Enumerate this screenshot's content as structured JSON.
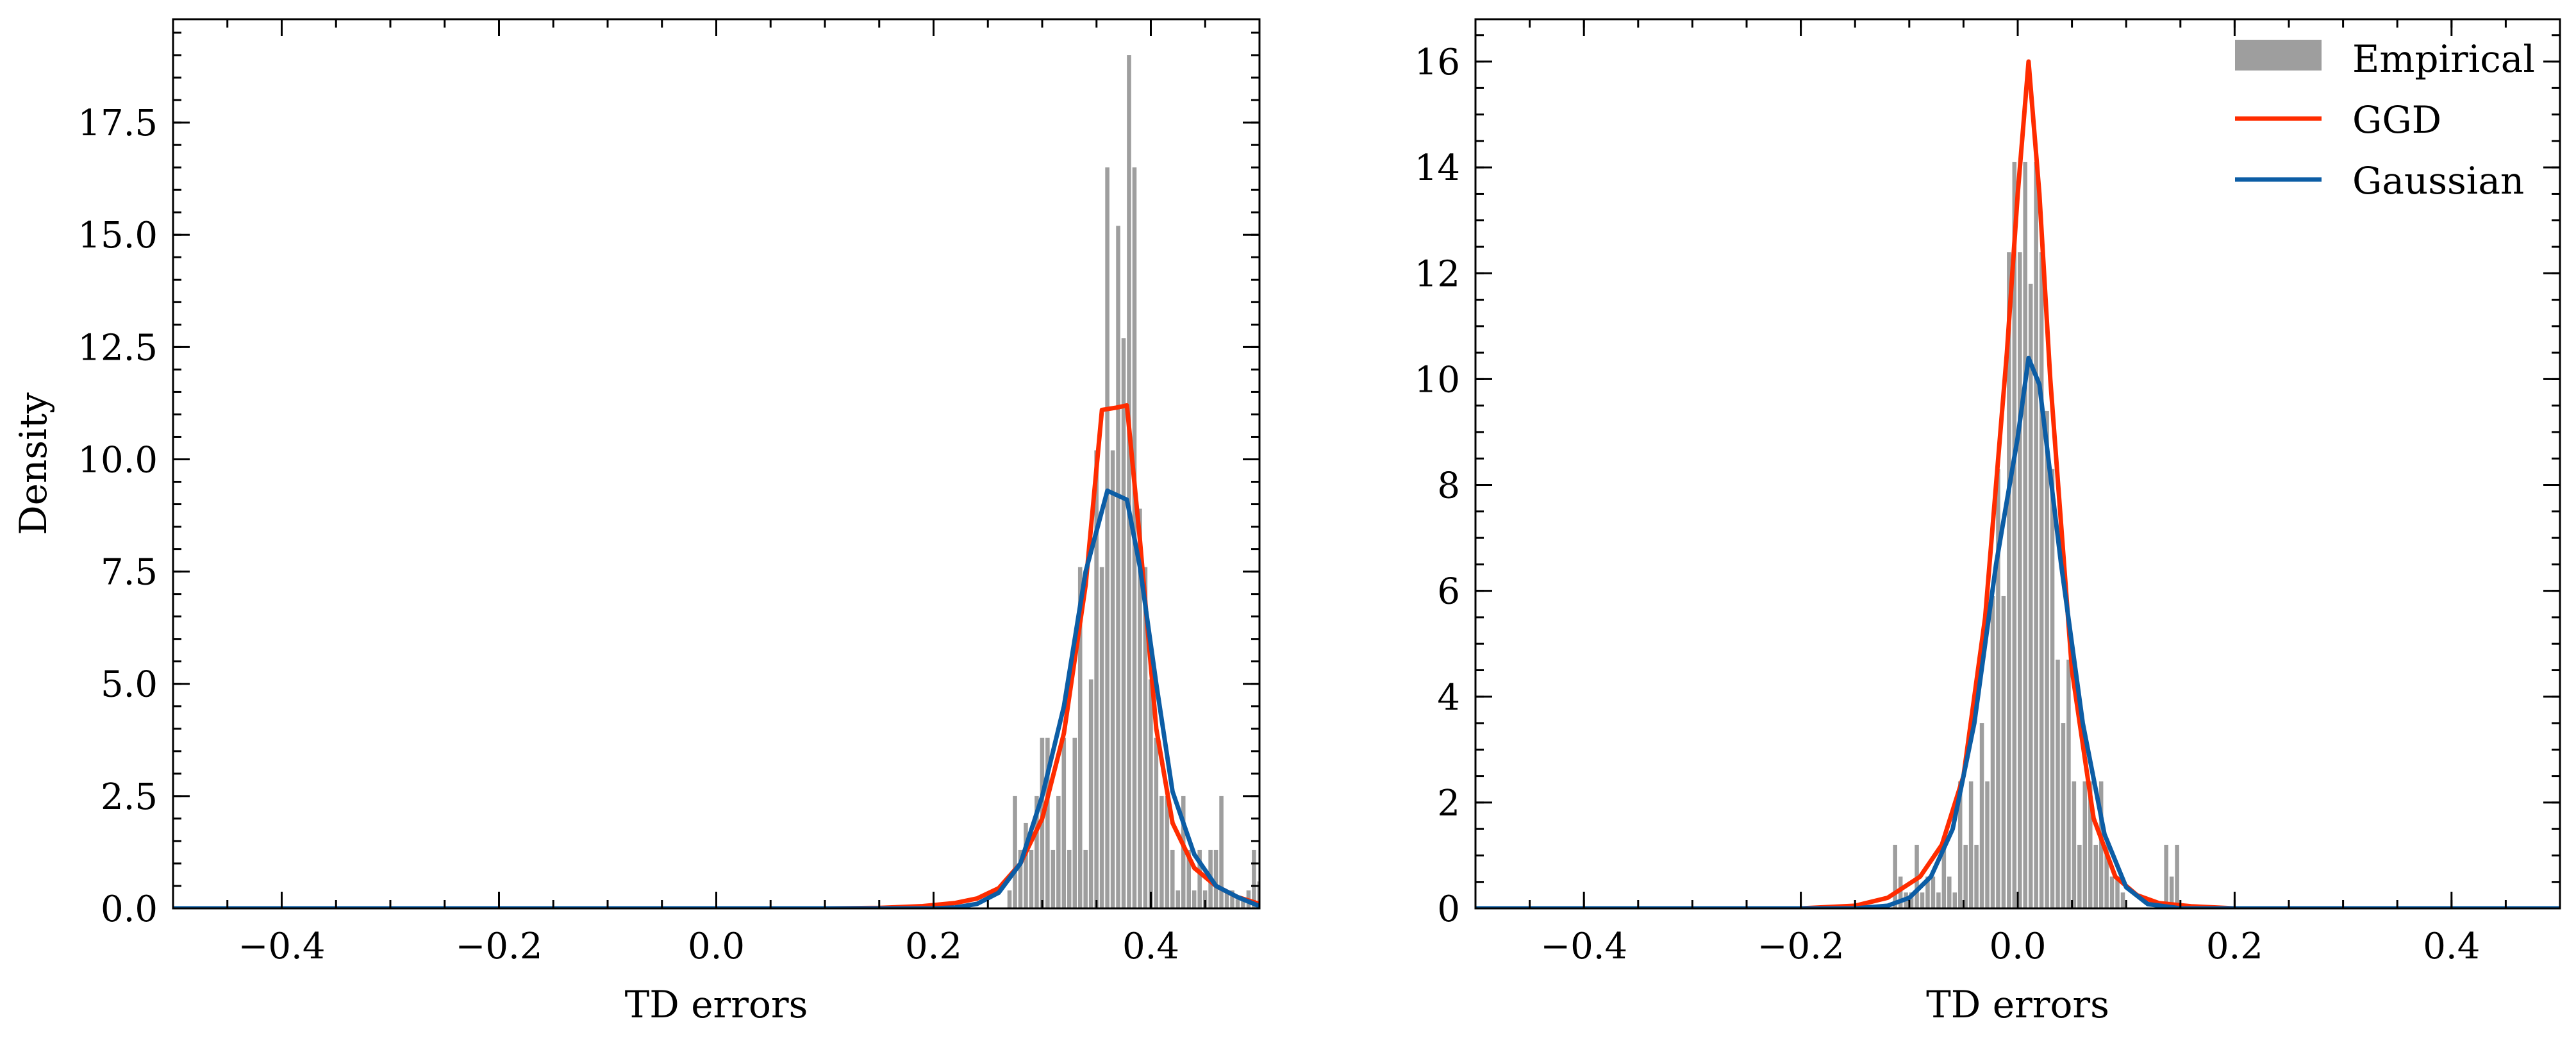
{
  "colors": {
    "hist": "#9e9e9e",
    "ggd": "#ff2c00",
    "gaussian": "#0c5da5",
    "axes": "#000000"
  },
  "legend": {
    "empirical": "Empirical",
    "ggd": "GGD",
    "gaussian": "Gaussian"
  },
  "chart_data": [
    {
      "type": "bar",
      "xlabel": "TD errors",
      "ylabel": "Density",
      "xlim": [
        -0.5,
        0.5
      ],
      "ylim": [
        0,
        19.8
      ],
      "xticks": [
        -0.4,
        -0.2,
        0.0,
        0.2,
        0.4
      ],
      "xtick_labels": [
        "−0.4",
        "−0.2",
        "0.0",
        "0.2",
        "0.4"
      ],
      "yticks": [
        0,
        2.5,
        5,
        7.5,
        10,
        12.5,
        15,
        17.5
      ],
      "ytick_labels": [
        "0.0",
        "2.5",
        "5.0",
        "7.5",
        "10.0",
        "12.5",
        "15.0",
        "17.5"
      ],
      "legend": false,
      "histogram": {
        "name": "Empirical",
        "bin_width": 0.00505,
        "bins": [
          [
            0.268,
            0.4
          ],
          [
            0.273,
            2.5
          ],
          [
            0.278,
            1.3
          ],
          [
            0.283,
            1.9
          ],
          [
            0.288,
            1.3
          ],
          [
            0.293,
            2.5
          ],
          [
            0.298,
            3.8
          ],
          [
            0.303,
            3.8
          ],
          [
            0.308,
            1.3
          ],
          [
            0.313,
            2.5
          ],
          [
            0.318,
            3.8
          ],
          [
            0.323,
            1.3
          ],
          [
            0.328,
            3.8
          ],
          [
            0.333,
            7.6
          ],
          [
            0.338,
            1.3
          ],
          [
            0.343,
            5.1
          ],
          [
            0.348,
            10.2
          ],
          [
            0.353,
            7.6
          ],
          [
            0.358,
            16.5
          ],
          [
            0.363,
            10.2
          ],
          [
            0.368,
            15.2
          ],
          [
            0.373,
            12.7
          ],
          [
            0.378,
            19.0
          ],
          [
            0.383,
            16.5
          ],
          [
            0.388,
            8.9
          ],
          [
            0.393,
            7.6
          ],
          [
            0.398,
            5.1
          ],
          [
            0.403,
            3.8
          ],
          [
            0.408,
            2.5
          ],
          [
            0.413,
            2.5
          ],
          [
            0.418,
            1.3
          ],
          [
            0.423,
            0.4
          ],
          [
            0.428,
            2.5
          ],
          [
            0.433,
            1.3
          ],
          [
            0.438,
            0.4
          ],
          [
            0.443,
            1.3
          ],
          [
            0.448,
            0.4
          ],
          [
            0.453,
            1.3
          ],
          [
            0.458,
            1.3
          ],
          [
            0.463,
            2.5
          ],
          [
            0.468,
            0.4
          ],
          [
            0.473,
            0.4
          ],
          [
            0.478,
            0.2
          ],
          [
            0.483,
            0.2
          ],
          [
            0.488,
            0.4
          ],
          [
            0.493,
            1.3
          ],
          [
            0.498,
            0.6
          ]
        ]
      },
      "series": [
        {
          "name": "GGD",
          "x": [
            -0.5,
            0.0,
            0.1,
            0.15,
            0.19,
            0.22,
            0.24,
            0.26,
            0.28,
            0.3,
            0.32,
            0.34,
            0.355,
            0.368,
            0.378,
            0.39,
            0.405,
            0.42,
            0.44,
            0.46,
            0.48,
            0.5
          ],
          "y": [
            0.0,
            0.0,
            0.0,
            0.01,
            0.05,
            0.12,
            0.22,
            0.45,
            1.0,
            2.0,
            3.9,
            7.2,
            11.1,
            11.15,
            11.2,
            8.2,
            4.0,
            1.9,
            0.9,
            0.5,
            0.25,
            0.1
          ]
        },
        {
          "name": "Gaussian",
          "x": [
            -0.5,
            0.1,
            0.2,
            0.22,
            0.24,
            0.26,
            0.28,
            0.3,
            0.32,
            0.34,
            0.36,
            0.378,
            0.39,
            0.405,
            0.42,
            0.44,
            0.46,
            0.48,
            0.5
          ],
          "y": [
            0.0,
            0.0,
            0.0,
            0.02,
            0.1,
            0.35,
            1.0,
            2.5,
            4.5,
            7.5,
            9.3,
            9.1,
            7.6,
            5.0,
            2.6,
            1.2,
            0.5,
            0.25,
            0.05
          ]
        }
      ]
    },
    {
      "type": "bar",
      "xlabel": "TD errors",
      "ylabel": "",
      "xlim": [
        -0.5,
        0.5
      ],
      "ylim": [
        0,
        16.8
      ],
      "xticks": [
        -0.4,
        -0.2,
        0.0,
        0.2,
        0.4
      ],
      "xtick_labels": [
        "−0.4",
        "−0.2",
        "0.0",
        "0.2",
        "0.4"
      ],
      "yticks": [
        0,
        2,
        4,
        6,
        8,
        10,
        12,
        14,
        16
      ],
      "ytick_labels": [
        "0",
        "2",
        "4",
        "6",
        "8",
        "10",
        "12",
        "14",
        "16"
      ],
      "legend": true,
      "legend_position": "top-right",
      "histogram": {
        "name": "Empirical",
        "bin_width": 0.00505,
        "bins": [
          [
            -0.115,
            1.2
          ],
          [
            -0.11,
            0.6
          ],
          [
            -0.105,
            0.3
          ],
          [
            -0.1,
            0.3
          ],
          [
            -0.095,
            1.2
          ],
          [
            -0.09,
            0.3
          ],
          [
            -0.085,
            0.6
          ],
          [
            -0.08,
            0.6
          ],
          [
            -0.075,
            0.3
          ],
          [
            -0.07,
            1.2
          ],
          [
            -0.065,
            0.6
          ],
          [
            -0.06,
            0.3
          ],
          [
            -0.055,
            2.4
          ],
          [
            -0.05,
            1.2
          ],
          [
            -0.045,
            2.4
          ],
          [
            -0.04,
            1.2
          ],
          [
            -0.035,
            3.5
          ],
          [
            -0.03,
            2.4
          ],
          [
            -0.025,
            5.9
          ],
          [
            -0.02,
            8.3
          ],
          [
            -0.015,
            5.9
          ],
          [
            -0.01,
            12.4
          ],
          [
            -0.005,
            14.1
          ],
          [
            0.0,
            12.4
          ],
          [
            0.005,
            14.1
          ],
          [
            0.01,
            11.8
          ],
          [
            0.015,
            14.1
          ],
          [
            0.02,
            12.4
          ],
          [
            0.025,
            9.4
          ],
          [
            0.03,
            8.3
          ],
          [
            0.035,
            4.7
          ],
          [
            0.04,
            3.5
          ],
          [
            0.045,
            4.7
          ],
          [
            0.05,
            2.4
          ],
          [
            0.055,
            1.2
          ],
          [
            0.06,
            2.4
          ],
          [
            0.065,
            2.4
          ],
          [
            0.07,
            1.2
          ],
          [
            0.075,
            2.4
          ],
          [
            0.08,
            1.2
          ],
          [
            0.085,
            0.6
          ],
          [
            0.09,
            0.6
          ],
          [
            0.095,
            0.3
          ],
          [
            0.135,
            1.2
          ],
          [
            0.14,
            0.6
          ],
          [
            0.145,
            1.2
          ]
        ]
      },
      "series": [
        {
          "name": "GGD",
          "x": [
            -0.5,
            -0.2,
            -0.15,
            -0.12,
            -0.09,
            -0.07,
            -0.05,
            -0.03,
            -0.01,
            0.0,
            0.01,
            0.02,
            0.03,
            0.05,
            0.07,
            0.09,
            0.11,
            0.13,
            0.16,
            0.2,
            0.3,
            0.5
          ],
          "y": [
            0.0,
            0.0,
            0.05,
            0.2,
            0.6,
            1.2,
            2.5,
            5.5,
            10.5,
            13.5,
            16.0,
            13.5,
            10.0,
            4.5,
            1.7,
            0.6,
            0.25,
            0.1,
            0.04,
            0.0,
            0.0,
            0.0
          ]
        },
        {
          "name": "Gaussian",
          "x": [
            -0.5,
            -0.15,
            -0.12,
            -0.1,
            -0.08,
            -0.06,
            -0.04,
            -0.02,
            0.0,
            0.01,
            0.02,
            0.04,
            0.06,
            0.08,
            0.1,
            0.12,
            0.15,
            0.5
          ],
          "y": [
            0.0,
            0.0,
            0.05,
            0.2,
            0.6,
            1.5,
            3.5,
            6.5,
            8.9,
            10.4,
            9.9,
            6.5,
            3.5,
            1.4,
            0.4,
            0.08,
            0.0,
            0.0
          ]
        }
      ]
    }
  ]
}
